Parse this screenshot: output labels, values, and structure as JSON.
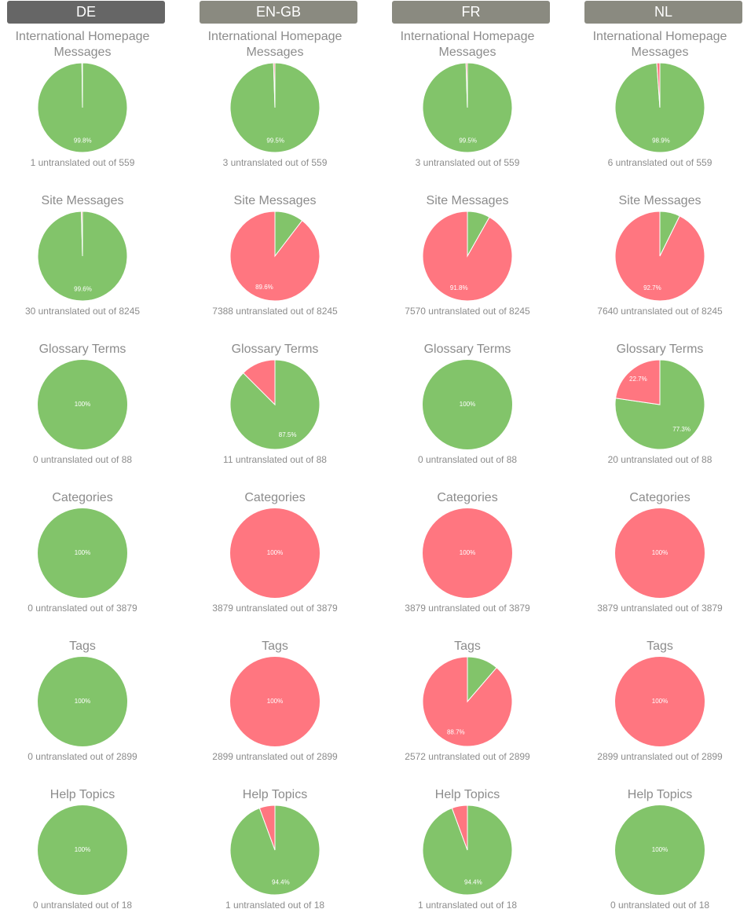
{
  "tabs": [
    "DE",
    "EN-GB",
    "FR",
    "NL"
  ],
  "colors": [
    "#82c46a",
    "#ff7680"
  ],
  "columns": [
    {
      "charts": [
        {
          "type": "pie",
          "title": "International Homepage Messages",
          "values": [
            99.8,
            0.2
          ],
          "value_labels": [
            "99.8%",
            null
          ],
          "caption": "1 untranslated out of 559"
        },
        {
          "type": "pie",
          "title": "Site Messages",
          "values": [
            99.6,
            0.4
          ],
          "value_labels": [
            "99.6%",
            null
          ],
          "caption": "30 untranslated out of 8245"
        },
        {
          "type": "pie",
          "title": "Glossary Terms",
          "values": [
            100,
            0
          ],
          "value_labels": [
            "100%",
            null
          ],
          "caption": "0 untranslated out of 88"
        },
        {
          "type": "pie",
          "title": "Categories",
          "values": [
            100,
            0
          ],
          "value_labels": [
            "100%",
            null
          ],
          "caption": "0 untranslated out of 3879"
        },
        {
          "type": "pie",
          "title": "Tags",
          "values": [
            100,
            0
          ],
          "value_labels": [
            "100%",
            null
          ],
          "caption": "0 untranslated out of 2899"
        },
        {
          "type": "pie",
          "title": "Help Topics",
          "values": [
            100,
            0
          ],
          "value_labels": [
            "100%",
            null
          ],
          "caption": "0 untranslated out of 18"
        }
      ]
    },
    {
      "charts": [
        {
          "type": "pie",
          "title": "International Homepage Messages",
          "values": [
            99.5,
            0.5
          ],
          "value_labels": [
            "99.5%",
            null
          ],
          "caption": "3 untranslated out of 559"
        },
        {
          "type": "pie",
          "title": "Site Messages",
          "values": [
            10.4,
            89.6
          ],
          "value_labels": [
            null,
            "89.6%"
          ],
          "caption": "7388 untranslated out of 8245"
        },
        {
          "type": "pie",
          "title": "Glossary Terms",
          "values": [
            87.5,
            12.5
          ],
          "value_labels": [
            "87.5%",
            null
          ],
          "caption": "11 untranslated out of 88"
        },
        {
          "type": "pie",
          "title": "Categories",
          "values": [
            0,
            100
          ],
          "value_labels": [
            null,
            "100%"
          ],
          "caption": "3879 untranslated out of 3879"
        },
        {
          "type": "pie",
          "title": "Tags",
          "values": [
            0,
            100
          ],
          "value_labels": [
            null,
            "100%"
          ],
          "caption": "2899 untranslated out of 2899"
        },
        {
          "type": "pie",
          "title": "Help Topics",
          "values": [
            94.4,
            5.6
          ],
          "value_labels": [
            "94.4%",
            null
          ],
          "caption": "1 untranslated out of 18"
        }
      ]
    },
    {
      "charts": [
        {
          "type": "pie",
          "title": "International Homepage Messages",
          "values": [
            99.5,
            0.5
          ],
          "value_labels": [
            "99.5%",
            null
          ],
          "caption": "3 untranslated out of 559"
        },
        {
          "type": "pie",
          "title": "Site Messages",
          "values": [
            8.2,
            91.8
          ],
          "value_labels": [
            null,
            "91.8%"
          ],
          "caption": "7570 untranslated out of 8245"
        },
        {
          "type": "pie",
          "title": "Glossary Terms",
          "values": [
            100,
            0
          ],
          "value_labels": [
            "100%",
            null
          ],
          "caption": "0 untranslated out of 88"
        },
        {
          "type": "pie",
          "title": "Categories",
          "values": [
            0,
            100
          ],
          "value_labels": [
            null,
            "100%"
          ],
          "caption": "3879 untranslated out of 3879"
        },
        {
          "type": "pie",
          "title": "Tags",
          "values": [
            11.3,
            88.7
          ],
          "value_labels": [
            null,
            "88.7%"
          ],
          "caption": "2572 untranslated out of 2899"
        },
        {
          "type": "pie",
          "title": "Help Topics",
          "values": [
            94.4,
            5.6
          ],
          "value_labels": [
            "94.4%",
            null
          ],
          "caption": "1 untranslated out of 18"
        }
      ]
    },
    {
      "charts": [
        {
          "type": "pie",
          "title": "International Homepage Messages",
          "values": [
            98.9,
            1.1
          ],
          "value_labels": [
            "98.9%",
            null
          ],
          "caption": "6 untranslated out of 559"
        },
        {
          "type": "pie",
          "title": "Site Messages",
          "values": [
            7.3,
            92.7
          ],
          "value_labels": [
            null,
            "92.7%"
          ],
          "caption": "7640 untranslated out of 8245"
        },
        {
          "type": "pie",
          "title": "Glossary Terms",
          "values": [
            77.3,
            22.7
          ],
          "value_labels": [
            "77.3%",
            "22.7%"
          ],
          "caption": "20 untranslated out of 88"
        },
        {
          "type": "pie",
          "title": "Categories",
          "values": [
            0,
            100
          ],
          "value_labels": [
            null,
            "100%"
          ],
          "caption": "3879 untranslated out of 3879"
        },
        {
          "type": "pie",
          "title": "Tags",
          "values": [
            0,
            100
          ],
          "value_labels": [
            null,
            "100%"
          ],
          "caption": "2899 untranslated out of 2899"
        },
        {
          "type": "pie",
          "title": "Help Topics",
          "values": [
            100,
            0
          ],
          "value_labels": [
            "100%",
            null
          ],
          "caption": "0 untranslated out of 18"
        }
      ]
    }
  ]
}
